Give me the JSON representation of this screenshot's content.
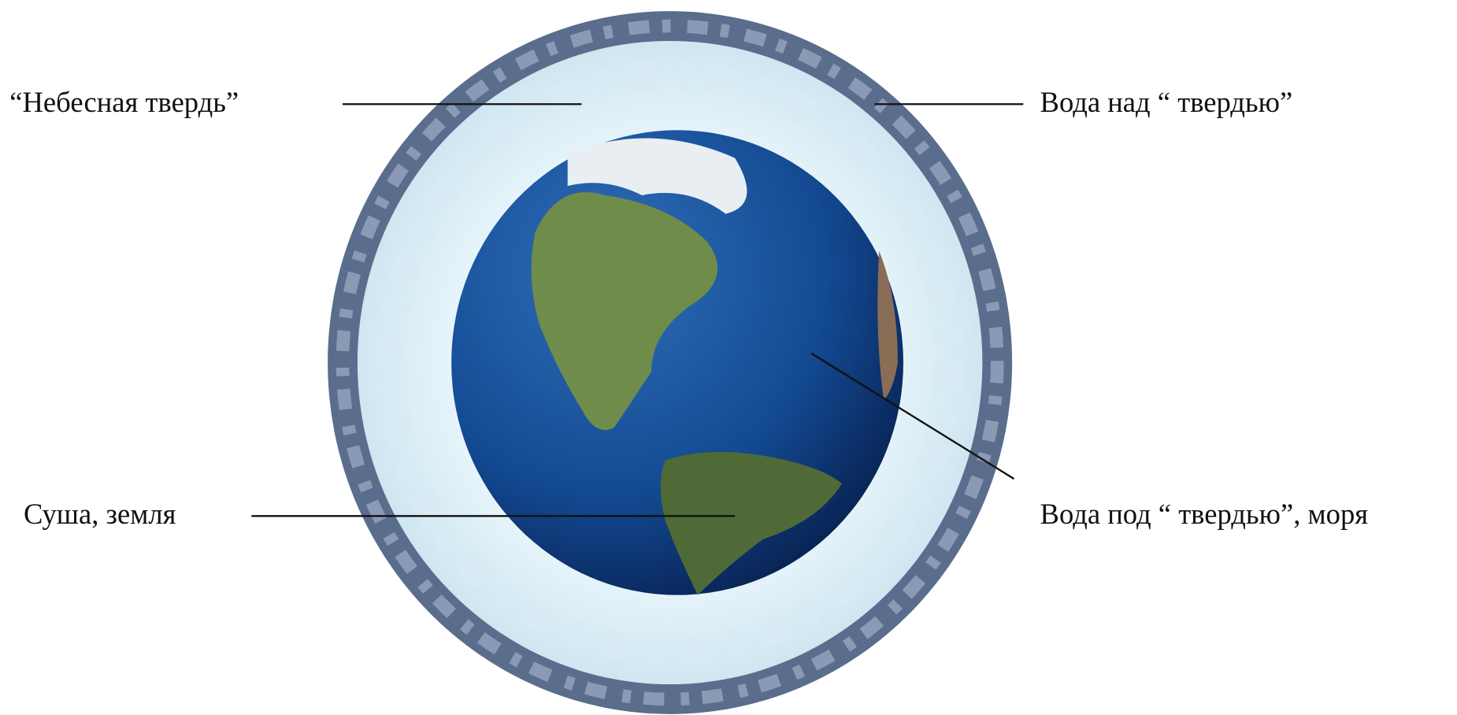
{
  "labels": [
    {
      "text": "“Небесная твердь”"
    },
    {
      "text": "Вода над “ твердью”"
    },
    {
      "text": "Суша, земля"
    },
    {
      "text": "Вода под “ твердью”, моря"
    }
  ]
}
